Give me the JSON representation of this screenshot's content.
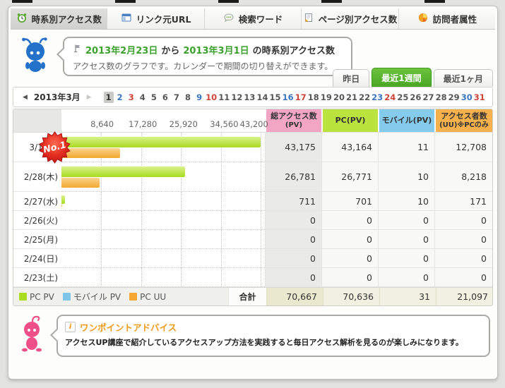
{
  "tabs": [
    {
      "label": "時系別アクセス数",
      "active": true
    },
    {
      "label": "リンク元URL",
      "active": false
    },
    {
      "label": "検索ワード",
      "active": false
    },
    {
      "label": "ページ別アクセス数",
      "active": false
    },
    {
      "label": "訪問者属性",
      "active": false
    }
  ],
  "intro": {
    "date_from": "2013年2月23日",
    "from_word": "から",
    "date_to": "2013年3月1日",
    "title_suffix": "の時系別アクセス数",
    "description": "アクセス数のグラフです。カレンダーで期間の切り替えができます。"
  },
  "period_buttons": [
    {
      "label": "昨日",
      "active": false
    },
    {
      "label": "最近1週間",
      "active": true
    },
    {
      "label": "最近1ヶ月",
      "active": false
    }
  ],
  "calendar": {
    "month_label": "2013年3月",
    "prev_arrow": "◀",
    "next_arrow": "▶",
    "days": [
      {
        "d": "1",
        "type": "selected"
      },
      {
        "d": "2",
        "type": "sat"
      },
      {
        "d": "3",
        "type": "sun"
      },
      {
        "d": "4",
        "type": "wd"
      },
      {
        "d": "5",
        "type": "wd"
      },
      {
        "d": "6",
        "type": "wd"
      },
      {
        "d": "7",
        "type": "wd"
      },
      {
        "d": "8",
        "type": "wd"
      },
      {
        "d": "9",
        "type": "sat"
      },
      {
        "d": "10",
        "type": "sun"
      },
      {
        "d": "11",
        "type": "wd"
      },
      {
        "d": "12",
        "type": "wd"
      },
      {
        "d": "13",
        "type": "wd"
      },
      {
        "d": "14",
        "type": "wd"
      },
      {
        "d": "15",
        "type": "wd"
      },
      {
        "d": "16",
        "type": "sat"
      },
      {
        "d": "17",
        "type": "sun"
      },
      {
        "d": "18",
        "type": "wd"
      },
      {
        "d": "19",
        "type": "wd"
      },
      {
        "d": "20",
        "type": "wd"
      },
      {
        "d": "21",
        "type": "wd"
      },
      {
        "d": "22",
        "type": "wd"
      },
      {
        "d": "23",
        "type": "sat"
      },
      {
        "d": "24",
        "type": "sun"
      },
      {
        "d": "25",
        "type": "wd"
      },
      {
        "d": "26",
        "type": "wd"
      },
      {
        "d": "27",
        "type": "wd"
      },
      {
        "d": "28",
        "type": "wd"
      },
      {
        "d": "29",
        "type": "wd"
      },
      {
        "d": "30",
        "type": "sat"
      },
      {
        "d": "31",
        "type": "sun"
      }
    ]
  },
  "chart_data": {
    "type": "bar",
    "title": "時系別アクセス数",
    "orientation": "horizontal",
    "xlim": [
      0,
      43200
    ],
    "xmax": 43200,
    "x_ticks": [
      "8,640",
      "17,280",
      "25,920",
      "34,560",
      "43,200"
    ],
    "grid": true,
    "columns": [
      {
        "line1": "総アクセス数",
        "line2": "(PV)",
        "color": "#f2a6c4"
      },
      {
        "line1": "PC(PV)",
        "line2": "",
        "color": "#bbe33e"
      },
      {
        "line1": "モバイル(PV)",
        "line2": "",
        "color": "#85cbec"
      },
      {
        "line1": "アクセス者数",
        "line2": "(UU)※PCのみ",
        "color": "#f6b14c"
      }
    ],
    "rows": [
      {
        "label": "3/1(金)",
        "display": [
          "43,175",
          "43,164",
          "11",
          "12,708"
        ],
        "pc_pv": 43164,
        "mobile_pv": 11,
        "pc_uu": 12708,
        "badge": "No.1",
        "tall": true
      },
      {
        "label": "2/28(木)",
        "display": [
          "26,781",
          "26,771",
          "10",
          "8,218"
        ],
        "pc_pv": 26771,
        "mobile_pv": 10,
        "pc_uu": 8218,
        "badge": null,
        "tall": true
      },
      {
        "label": "2/27(水)",
        "display": [
          "711",
          "701",
          "10",
          "171"
        ],
        "pc_pv": 701,
        "mobile_pv": 10,
        "pc_uu": 171,
        "badge": null,
        "tall": false
      },
      {
        "label": "2/26(火)",
        "display": [
          "0",
          "0",
          "0",
          "0"
        ],
        "pc_pv": 0,
        "mobile_pv": 0,
        "pc_uu": 0,
        "badge": null,
        "tall": false
      },
      {
        "label": "2/25(月)",
        "display": [
          "0",
          "0",
          "0",
          "0"
        ],
        "pc_pv": 0,
        "mobile_pv": 0,
        "pc_uu": 0,
        "badge": null,
        "tall": false
      },
      {
        "label": "2/24(日)",
        "display": [
          "0",
          "0",
          "0",
          "0"
        ],
        "pc_pv": 0,
        "mobile_pv": 0,
        "pc_uu": 0,
        "badge": null,
        "tall": false
      },
      {
        "label": "2/23(土)",
        "display": [
          "0",
          "0",
          "0",
          "0"
        ],
        "pc_pv": 0,
        "mobile_pv": 0,
        "pc_uu": 0,
        "badge": null,
        "tall": false
      }
    ],
    "legend": [
      {
        "label": "PC PV",
        "color": "#aadc22"
      },
      {
        "label": "モバイル PV",
        "color": "#7fc5e8"
      },
      {
        "label": "PC UU",
        "color": "#f5a832"
      }
    ],
    "legend_position": "bottom-left",
    "total": {
      "label": "合計",
      "values": [
        "70,667",
        "70,636",
        "31",
        "21,097"
      ]
    }
  },
  "advice": {
    "title": "ワンポイントアドバイス",
    "info_glyph": "i",
    "text": "アクセスUP講座で紹介しているアクセスアップ方法を実践すると毎日アクセス解析を見るのが楽しみになります。"
  },
  "colors": {
    "date_green": "#3ba22c",
    "active_button_green": "#56ab2e",
    "advice_orange": "#f09a18",
    "badge_red": "#d81e14"
  }
}
